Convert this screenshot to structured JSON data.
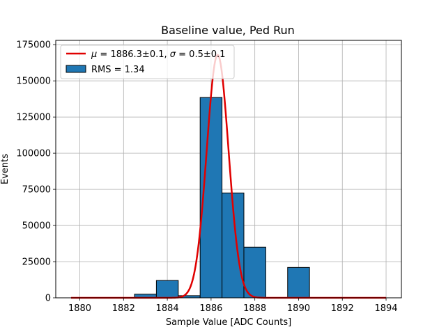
{
  "chart_data": {
    "type": "bar",
    "title": "Baseline value, Ped Run",
    "xlabel": "Sample Value [ADC Counts]",
    "ylabel": "Events",
    "xlim": [
      1878.9,
      1894.7
    ],
    "ylim": [
      0,
      178000
    ],
    "xticks": [
      1880,
      1882,
      1884,
      1886,
      1888,
      1890,
      1892,
      1894
    ],
    "yticks": [
      0,
      25000,
      50000,
      75000,
      100000,
      125000,
      150000,
      175000
    ],
    "grid": true,
    "legend_position": "top-left",
    "histogram": {
      "name": "RMS = 1.34",
      "color": "#1f77b4",
      "bins": [
        {
          "left": 1882.5,
          "right": 1883.5,
          "count": 2500
        },
        {
          "left": 1883.5,
          "right": 1884.5,
          "count": 12000
        },
        {
          "left": 1884.5,
          "right": 1885.5,
          "count": 1500
        },
        {
          "left": 1885.5,
          "right": 1886.5,
          "count": 138500
        },
        {
          "left": 1886.5,
          "right": 1887.5,
          "count": 72500
        },
        {
          "left": 1887.5,
          "right": 1888.5,
          "count": 35000
        },
        {
          "left": 1889.5,
          "right": 1890.5,
          "count": 21000
        }
      ]
    },
    "fit": {
      "name": "$\\mu = 1886.3{\\pm}0.1$, $\\sigma = 0.5{\\pm}0.1$",
      "legend_label": {
        "mu_symbol": "μ",
        "mu_text": " = 1886.3±0.1, ",
        "sigma_symbol": "σ",
        "sigma_text": " = 0.5±0.1"
      },
      "color": "#e00000",
      "type": "gaussian",
      "amplitude": 168000,
      "mu": 1886.3,
      "sigma": 0.5,
      "x_range": [
        1879.6,
        1894
      ]
    }
  }
}
